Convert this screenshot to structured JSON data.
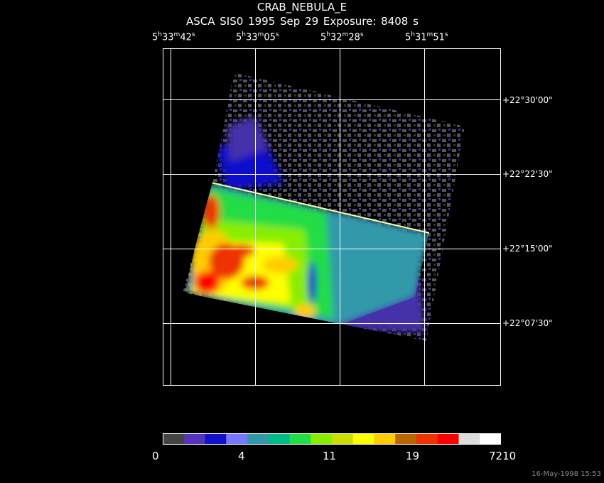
{
  "header": {
    "title": "CRAB_NEBULA_E",
    "subtitle": "ASCA SIS0    1995 Sep 29    Exposure:  8408 s"
  },
  "ra_labels": [
    {
      "h": "5",
      "m": "33",
      "s": "42"
    },
    {
      "h": "5",
      "m": "33",
      "s": "05"
    },
    {
      "h": "5",
      "m": "32",
      "s": "28"
    },
    {
      "h": "5",
      "m": "31",
      "s": "51"
    }
  ],
  "dec_labels": [
    "+22°30'00\"",
    "+22°22'30\"",
    "+22°15'00\"",
    "+22°07'30\""
  ],
  "colorbar": {
    "colors": [
      "#444444",
      "#5533bb",
      "#1111cc",
      "#7777ff",
      "#3399aa",
      "#00bb88",
      "#22dd44",
      "#88ee00",
      "#ccdd00",
      "#ffff00",
      "#ffcc00",
      "#bb6600",
      "#ee3300",
      "#ff0000",
      "#dddddd",
      "#ffffff"
    ],
    "tick_labels": [
      "0",
      "4",
      "11",
      "19",
      "7210"
    ]
  },
  "footer": {
    "timestamp": "16-May-1998 15:53"
  }
}
